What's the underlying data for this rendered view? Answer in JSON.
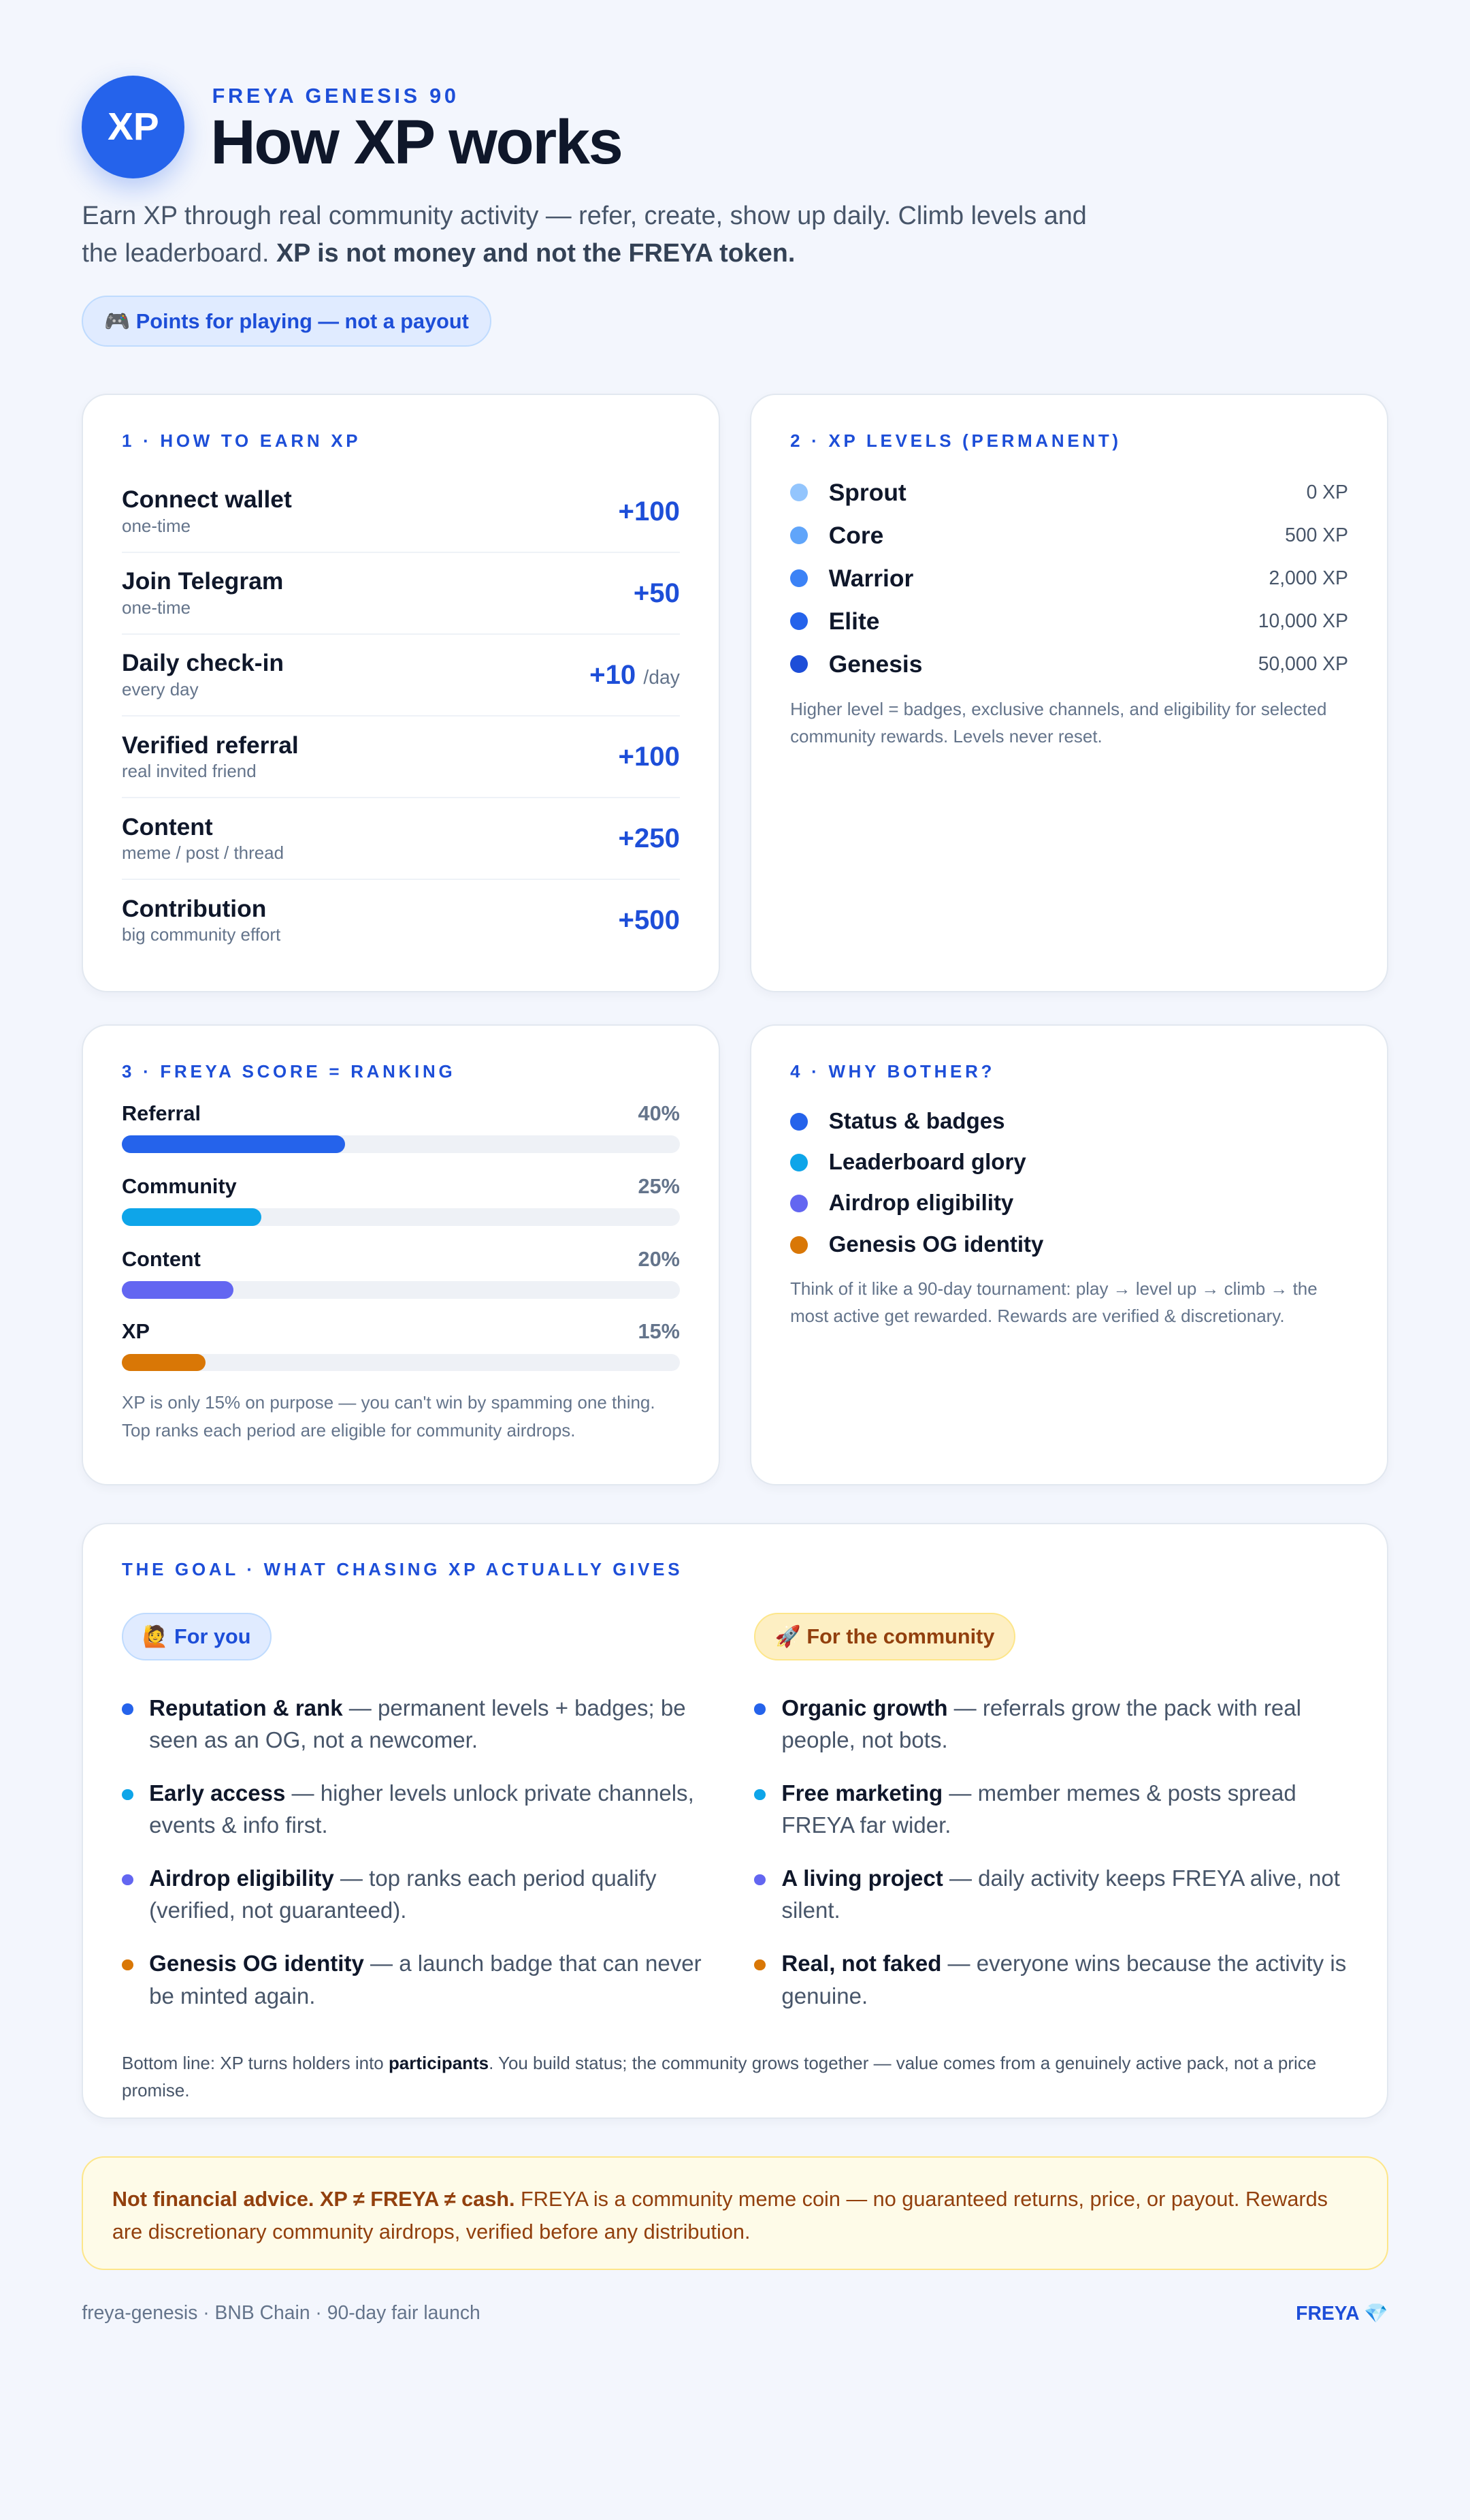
{
  "header": {
    "badge": "XP",
    "eyebrow": "FREYA GENESIS 90",
    "title": "How XP works",
    "intro": "Earn XP through real community activity — refer, create, show up daily. Climb levels and the leaderboard.",
    "intro_bold": "XP is not money and not the FREYA token.",
    "pill": "🎮 Points for playing — not a payout"
  },
  "earn": {
    "heading": "1 · HOW TO EARN XP",
    "items": [
      {
        "name": "Connect wallet",
        "note": "one-time",
        "xp": "+100"
      },
      {
        "name": "Join Telegram",
        "note": "one-time",
        "xp": "+50"
      },
      {
        "name": "Daily check-in",
        "note": "every day",
        "xp": "+10",
        "unit": "/day"
      },
      {
        "name": "Verified referral",
        "note": "real invited friend",
        "xp": "+100"
      },
      {
        "name": "Content",
        "note": "meme / post / thread",
        "xp": "+250"
      },
      {
        "name": "Contribution",
        "note": "big community effort",
        "xp": "+500"
      }
    ]
  },
  "levels": {
    "heading": "2 · XP LEVELS (PERMANENT)",
    "items": [
      {
        "name": "Sprout",
        "xp": "0 XP",
        "color": "#93c5fd"
      },
      {
        "name": "Core",
        "xp": "500 XP",
        "color": "#60a5fa"
      },
      {
        "name": "Warrior",
        "xp": "2,000 XP",
        "color": "#3b82f6"
      },
      {
        "name": "Elite",
        "xp": "10,000 XP",
        "color": "#2563eb"
      },
      {
        "name": "Genesis",
        "xp": "50,000 XP",
        "color": "#1d4ed8"
      }
    ],
    "note": "Higher level = badges, exclusive channels, and eligibility for selected community rewards. Levels never reset."
  },
  "score": {
    "heading": "3 · FREYA SCORE = RANKING",
    "items": [
      {
        "name": "Referral",
        "value": 40,
        "label": "40%",
        "color": "#2563eb"
      },
      {
        "name": "Community",
        "value": 25,
        "label": "25%",
        "color": "#0ea5e9"
      },
      {
        "name": "Content",
        "value": 20,
        "label": "20%",
        "color": "#6366f1"
      },
      {
        "name": "XP",
        "value": 15,
        "label": "15%",
        "color": "#d97706"
      }
    ],
    "note": "XP is only 15% on purpose — you can't win by spamming one thing. Top ranks each period are eligible for community airdrops."
  },
  "why": {
    "heading": "4 · WHY BOTHER?",
    "items": [
      {
        "text": "Status & badges",
        "color": "#2563eb"
      },
      {
        "text": "Leaderboard glory",
        "color": "#0ea5e9"
      },
      {
        "text": "Airdrop eligibility",
        "color": "#6366f1"
      },
      {
        "text": "Genesis OG identity",
        "color": "#d97706"
      }
    ],
    "note": "Think of it like a 90-day tournament: play → level up → climb → the most active get rewarded. Rewards are verified & discretionary."
  },
  "goal": {
    "heading": "THE GOAL · WHAT CHASING XP ACTUALLY GIVES",
    "columns": [
      {
        "tag": "🙋 For you",
        "items": [
          {
            "bold": "Reputation & rank",
            "text": " — permanent levels + badges; be seen as an OG, not a newcomer.",
            "color": "#2563eb"
          },
          {
            "bold": "Early access",
            "text": " — higher levels unlock private channels, events & info first.",
            "color": "#0ea5e9"
          },
          {
            "bold": "Airdrop eligibility",
            "text": " — top ranks each period qualify (verified, not guaranteed).",
            "color": "#6366f1"
          },
          {
            "bold": "Genesis OG identity",
            "text": " — a launch badge that can never be minted again.",
            "color": "#d97706"
          }
        ]
      },
      {
        "tag": "🚀 For the community",
        "items": [
          {
            "bold": "Organic growth",
            "text": " — referrals grow the pack with real people, not bots.",
            "color": "#2563eb"
          },
          {
            "bold": "Free marketing",
            "text": " — member memes & posts spread FREYA far wider.",
            "color": "#0ea5e9"
          },
          {
            "bold": "A living project",
            "text": " — daily activity keeps FREYA alive, not silent.",
            "color": "#6366f1"
          },
          {
            "bold": "Real, not faked",
            "text": " — everyone wins because the activity is genuine.",
            "color": "#d97706"
          }
        ]
      }
    ],
    "bottom": [
      "Bottom line: XP turns holders into ",
      "participants",
      ". You build status; the community grows together — value comes from a genuinely active pack, not a price promise."
    ]
  },
  "disclaimer": {
    "bold": "Not financial advice. XP ≠ FREYA ≠ cash.",
    "text": " FREYA is a community meme coin — no guaranteed returns, price, or payout. Rewards are discretionary community airdrops, verified before any distribution."
  },
  "footer": {
    "left": "freya-genesis · BNB Chain · 90-day fair launch",
    "right": "FREYA 💎"
  }
}
